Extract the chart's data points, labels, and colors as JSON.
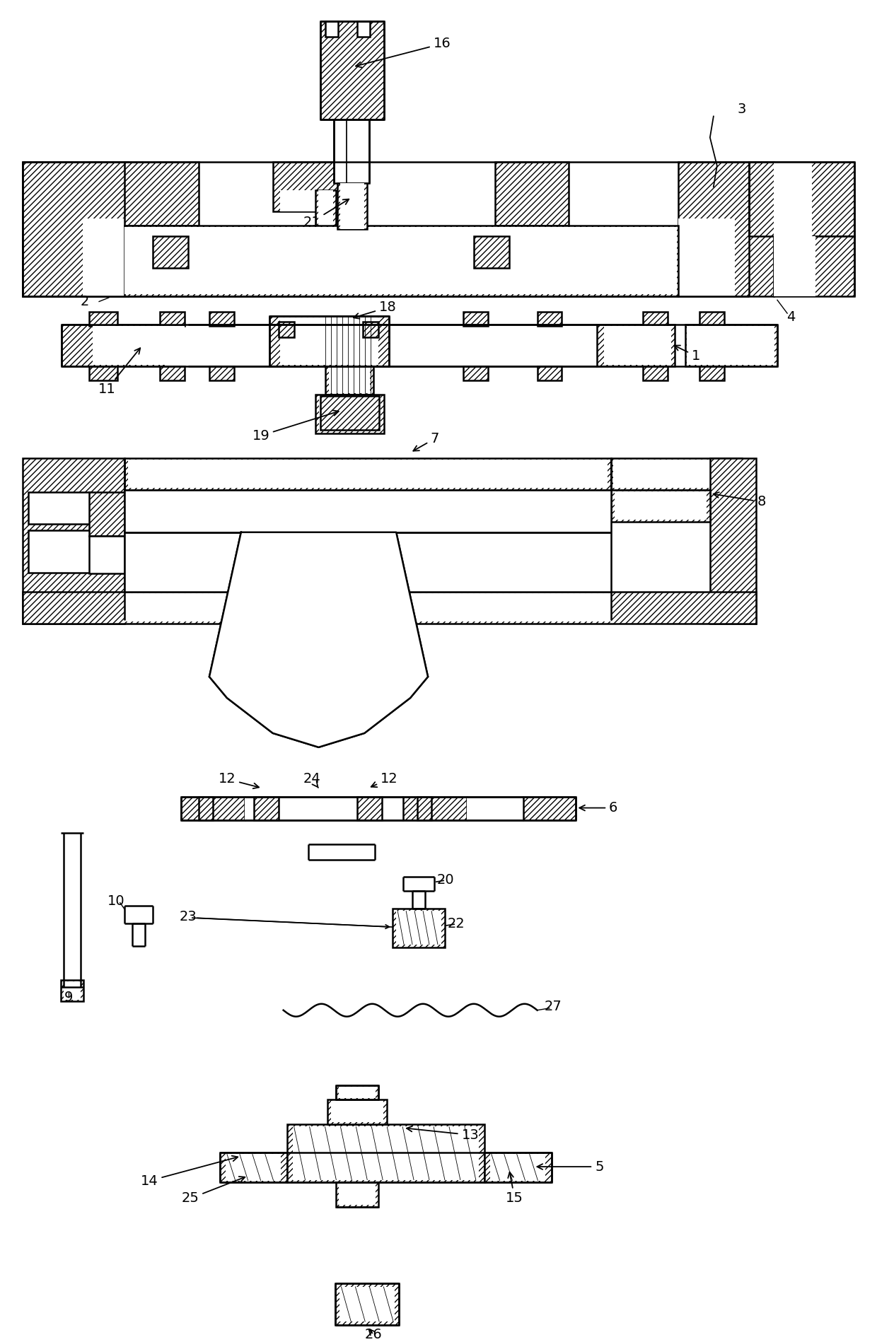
{
  "background_color": "#ffffff",
  "figsize": [
    12.4,
    18.98
  ],
  "dpi": 100
}
